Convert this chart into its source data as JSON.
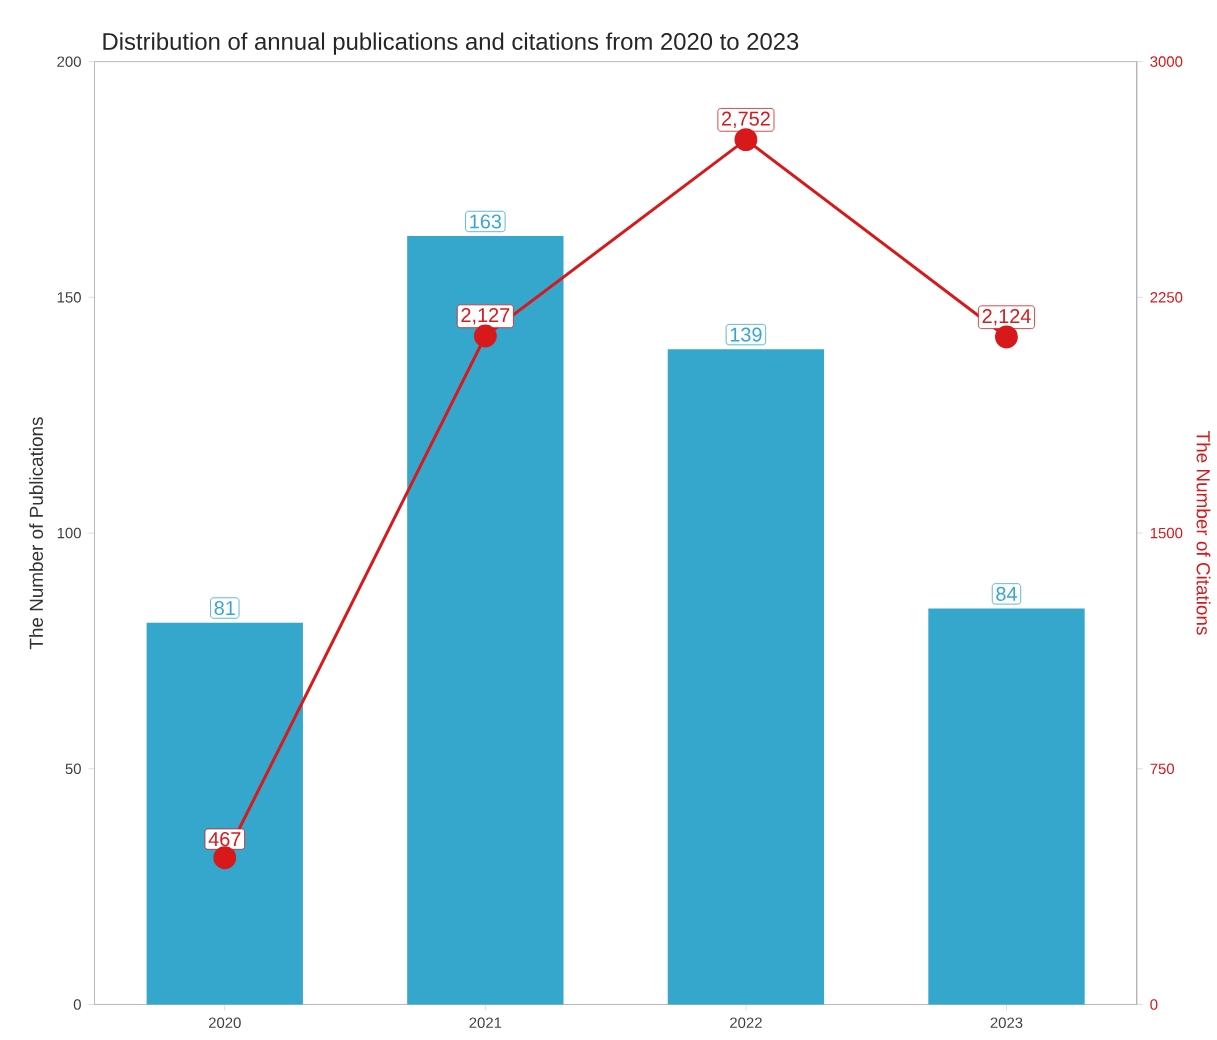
{
  "chart_data": {
    "type": "bar",
    "title": "Distribution of annual publications and citations  from 2020 to 2023",
    "ylabel": "The Number of Publications",
    "y2label": "The Number of Citations",
    "categories": [
      "2020",
      "2021",
      "2022",
      "2023"
    ],
    "series": [
      {
        "color": "#35a7cc",
        "values": [
          81,
          163,
          139,
          84
        ],
        "value_labels": [
          "81",
          "163",
          "139",
          "84"
        ]
      },
      {
        "type": "line",
        "axis": "y2",
        "color": "#d7191c",
        "marker": "circle",
        "values": [
          467,
          2127,
          2752,
          2124
        ],
        "value_labels": [
          "467",
          "2,127",
          "2,752",
          "2,124"
        ]
      }
    ],
    "ylim": [
      0,
      200
    ],
    "yticks": [
      0,
      50,
      100,
      150,
      200
    ],
    "y2lim": [
      0,
      3000
    ],
    "y2ticks": [
      0,
      750,
      1500,
      2250,
      3000
    ]
  }
}
